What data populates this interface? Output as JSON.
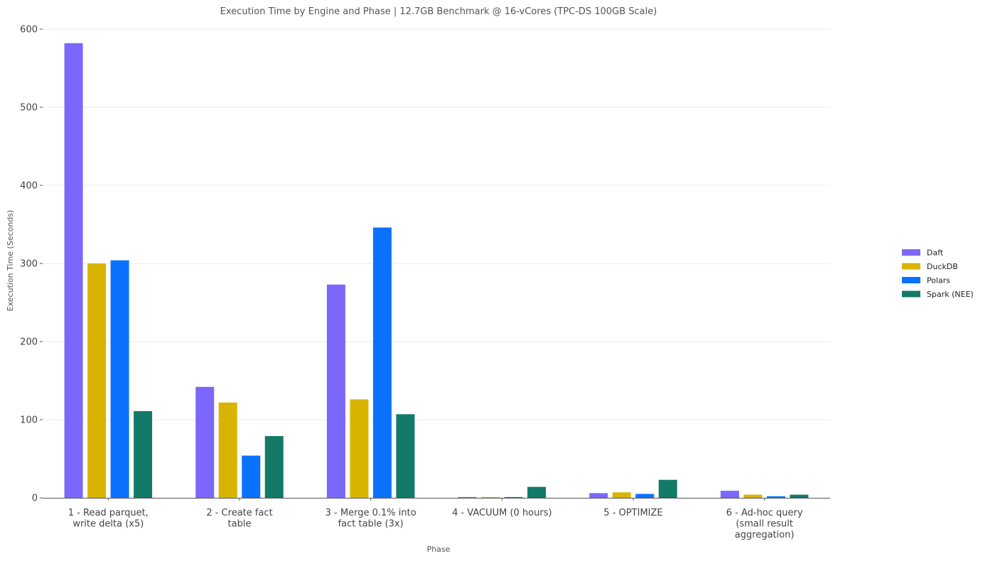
{
  "chart_data": {
    "type": "bar",
    "title": "Execution Time by Engine and Phase | 12.7GB Benchmark @ 16-vCores (TPC-DS 100GB Scale)",
    "xlabel": "Phase",
    "ylabel": "Execution Time (Seconds)",
    "ylim": [
      0,
      600
    ],
    "yticks": [
      0,
      100,
      200,
      300,
      400,
      500,
      600
    ],
    "grid": true,
    "legend_position": "right",
    "categories": [
      [
        "1 - Read parquet,",
        "write delta (x5)"
      ],
      [
        "2 - Create fact",
        "table"
      ],
      [
        "3 - Merge 0.1% into",
        "fact table (3x)"
      ],
      [
        "4 - VACUUM (0 hours)"
      ],
      [
        "5 - OPTIMIZE"
      ],
      [
        "6 - Ad-hoc query",
        "(small result",
        "aggregation)"
      ]
    ],
    "series": [
      {
        "name": "Daft",
        "color": "#7b68fa",
        "values": [
          582,
          142,
          273,
          1,
          6,
          9
        ]
      },
      {
        "name": "DuckDB",
        "color": "#d8b400",
        "values": [
          300,
          122,
          126,
          1,
          7,
          4
        ]
      },
      {
        "name": "Polars",
        "color": "#0a72ff",
        "values": [
          304,
          54,
          346,
          1,
          5,
          2
        ]
      },
      {
        "name": "Spark (NEE)",
        "color": "#137a68",
        "values": [
          111,
          79,
          107,
          14,
          23,
          4
        ]
      }
    ]
  }
}
